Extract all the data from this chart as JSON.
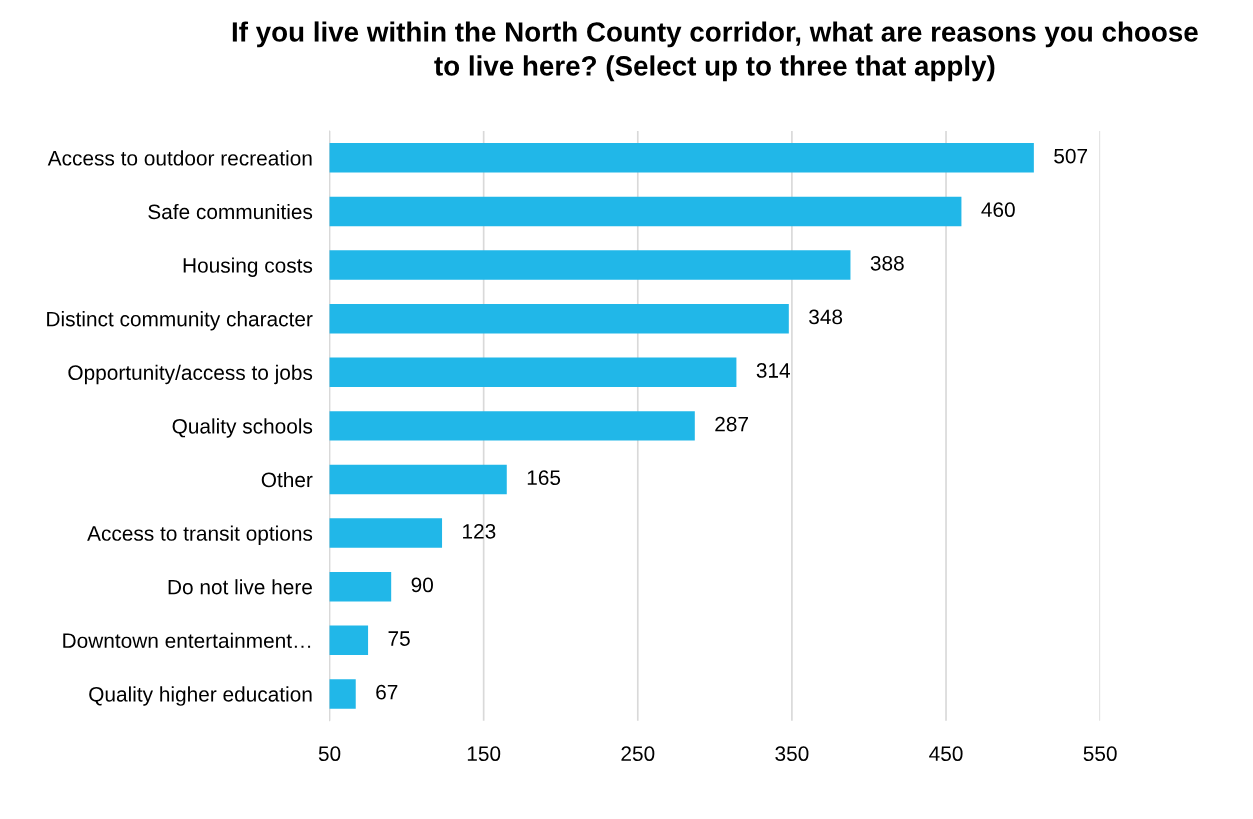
{
  "chart_data": {
    "type": "bar",
    "orientation": "horizontal",
    "title": "If you live within the North County corridor, what are reasons you choose\nto live here? (Select up to three that apply)",
    "categories": [
      "Access to outdoor recreation",
      "Safe communities",
      "Housing costs",
      "Distinct community character",
      "Opportunity/access to jobs",
      "Quality schools",
      "Other",
      "Access to transit options",
      "Do not live here",
      "Downtown entertainment…",
      "Quality higher education"
    ],
    "values": [
      507,
      460,
      388,
      348,
      314,
      287,
      165,
      123,
      90,
      75,
      67
    ],
    "color": "#21b7e8",
    "xlim": [
      50,
      550
    ],
    "xticks": [
      50,
      150,
      250,
      350,
      450,
      550
    ],
    "grid": "x",
    "data_labels": true
  }
}
